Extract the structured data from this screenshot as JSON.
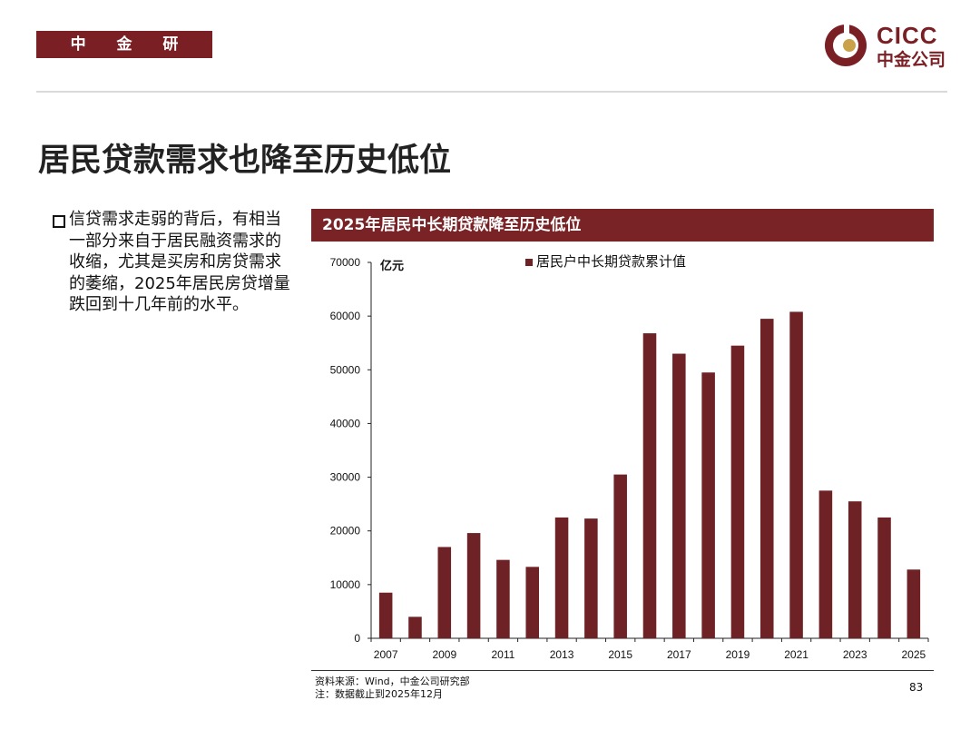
{
  "header": {
    "dept_label": "中 金 研 究 部",
    "logo_en": "CICC",
    "logo_cn": "中金公司"
  },
  "page": {
    "title": "居民贷款需求也降至历史低位",
    "bullet": "信贷需求走弱的背后，有相当一部分来自于居民融资需求的收缩，尤其是买房和房贷需求的萎缩，2025年居民房贷增量跌回到十几年前的水平。",
    "source_line1": "资料来源：Wind，中金公司研究部",
    "source_line2": "注：数据截止到2025年12月",
    "page_number": "83"
  },
  "colors": {
    "brand": "#7a1f24",
    "bar": "#6e2226"
  },
  "chart_data": {
    "type": "bar",
    "title": "2025年居民中长期贷款降至历史低位",
    "ylabel": "亿元",
    "legend": "居民户中长期贷款累计值",
    "legend_position": "top-center",
    "ylim": [
      0,
      70000
    ],
    "yticks": [
      0,
      10000,
      20000,
      30000,
      40000,
      50000,
      60000,
      70000
    ],
    "categories": [
      "2007",
      "2008",
      "2009",
      "2010",
      "2011",
      "2012",
      "2013",
      "2014",
      "2015",
      "2016",
      "2017",
      "2018",
      "2019",
      "2020",
      "2021",
      "2022",
      "2023",
      "2024",
      "2025"
    ],
    "xtick_labels": [
      "2007",
      "2009",
      "2011",
      "2013",
      "2015",
      "2017",
      "2019",
      "2021",
      "2023",
      "2025"
    ],
    "series": [
      {
        "name": "居民户中长期贷款累计值",
        "values": [
          8500,
          4000,
          17000,
          19600,
          14600,
          13300,
          22500,
          22300,
          30500,
          56800,
          53000,
          49500,
          54500,
          59500,
          60800,
          27500,
          25500,
          22500,
          12800
        ]
      }
    ],
    "grid": false
  }
}
